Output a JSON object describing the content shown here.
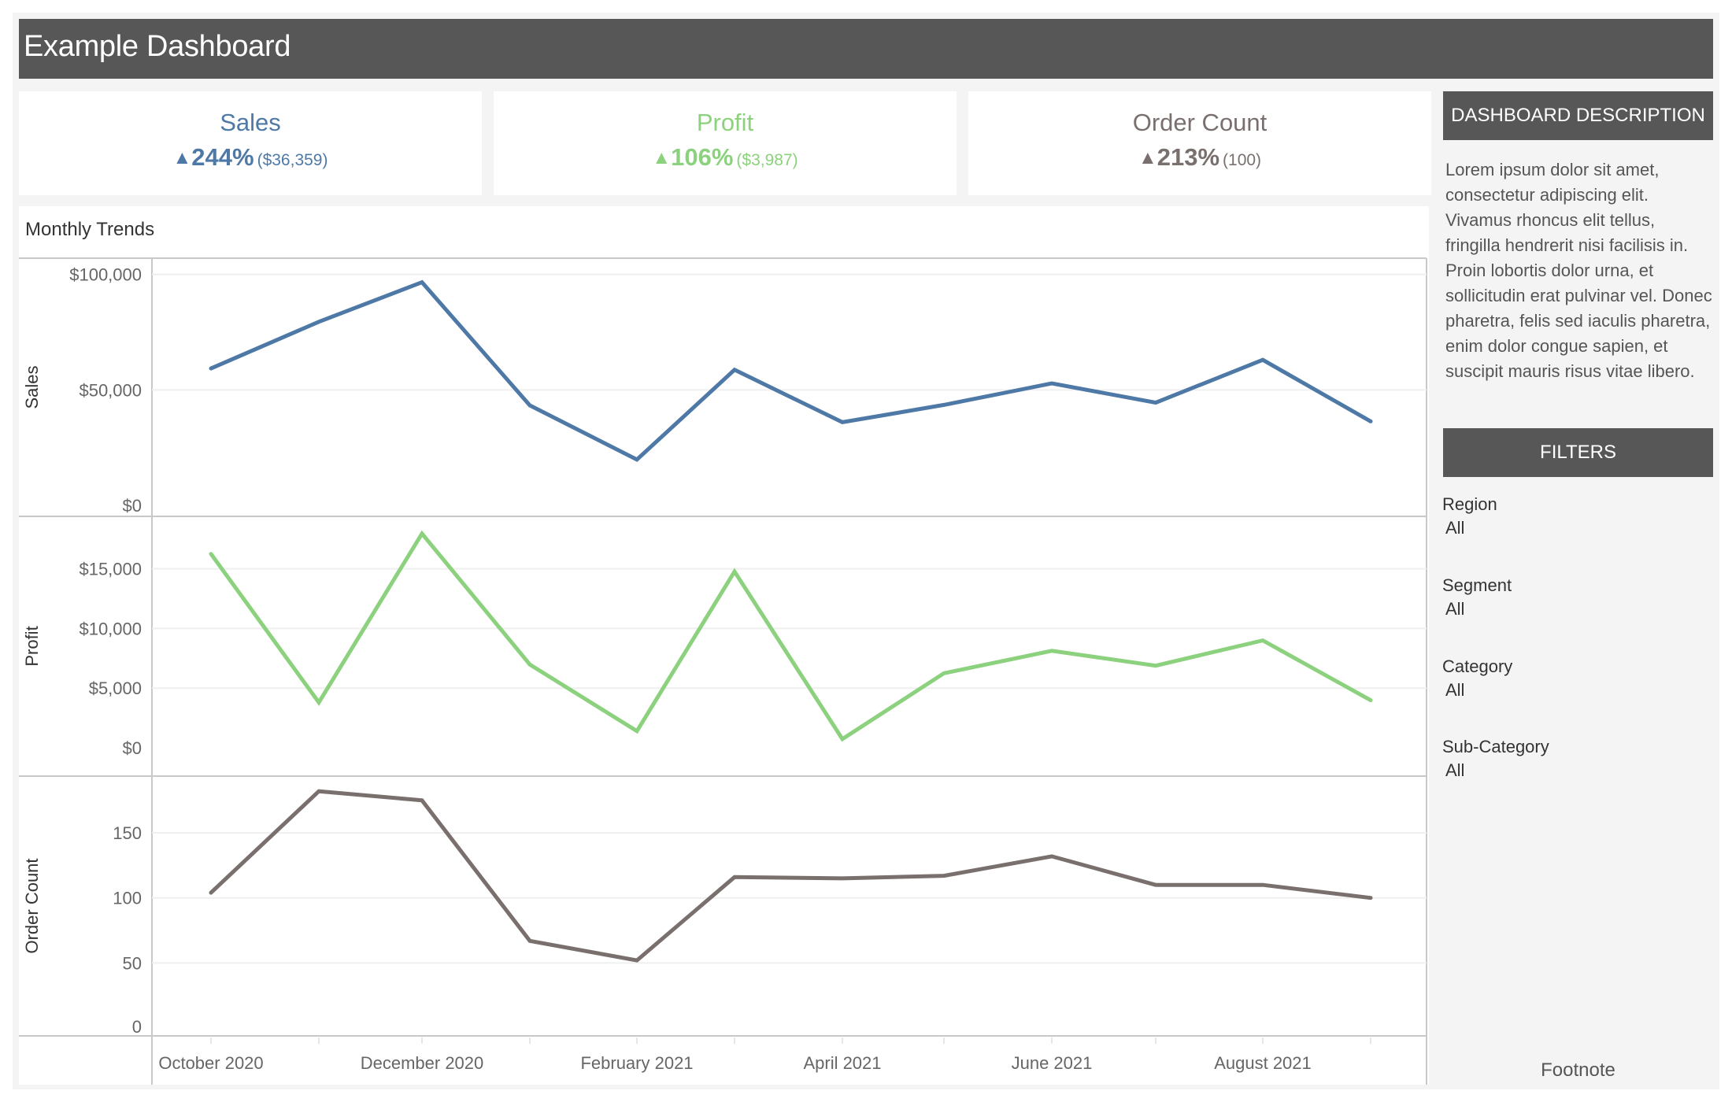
{
  "header": {
    "title": "Example Dashboard"
  },
  "kpis": [
    {
      "label": "Sales",
      "arrow": "▲",
      "pct": "244%",
      "abs": "($36,359)",
      "color": "#4e79a7"
    },
    {
      "label": "Profit",
      "arrow": "▲",
      "pct": "106%",
      "abs": "($3,987)",
      "color": "#8cd17d"
    },
    {
      "label": "Order Count",
      "arrow": "▲",
      "pct": "213%",
      "abs": "(100)",
      "color": "#79706e"
    }
  ],
  "sidebar": {
    "description_header": "DASHBOARD DESCRIPTION",
    "description": "Lorem ipsum dolor sit amet, consectetur adipiscing elit. Vivamus rhoncus elit tellus, fringilla hendrerit nisi facilisis in. Proin lobortis dolor urna, et sollicitudin erat pulvinar vel. Donec pharetra, felis sed iaculis pharetra, enim dolor congue sapien, et suscipit mauris risus vitae libero.",
    "filters_header": "FILTERS",
    "filters": [
      {
        "label": "Region",
        "value": "All"
      },
      {
        "label": "Segment",
        "value": "All"
      },
      {
        "label": "Category",
        "value": "All"
      },
      {
        "label": "Sub-Category",
        "value": "All"
      }
    ],
    "footnote": "Footnote"
  },
  "trends": {
    "title": "Monthly Trends"
  },
  "chart_data": {
    "type": "line",
    "title": "Monthly Trends",
    "x": [
      "October 2020",
      "November 2020",
      "December 2020",
      "January 2021",
      "February 2021",
      "March 2021",
      "April 2021",
      "May 2021",
      "June 2021",
      "July 2021",
      "August 2021",
      "September 2021"
    ],
    "x_tick_labels": [
      "October 2020",
      "December 2020",
      "February 2021",
      "April 2021",
      "June 2021",
      "August 2021"
    ],
    "grid": true,
    "legend": "none",
    "series": [
      {
        "name": "Sales",
        "color": "#4e79a7",
        "ylabel": "Sales",
        "ylim": [
          0,
          105000
        ],
        "yticks": [
          0,
          50000,
          100000
        ],
        "ytick_labels": [
          "$0",
          "$50,000",
          "$100,000"
        ],
        "values": [
          59300,
          79500,
          96600,
          43300,
          19800,
          58700,
          36000,
          43500,
          52800,
          44500,
          63000,
          36359
        ]
      },
      {
        "name": "Profit",
        "color": "#8cd17d",
        "ylabel": "Profit",
        "ylim": [
          0,
          19000
        ],
        "yticks": [
          0,
          5000,
          10000,
          15000
        ],
        "ytick_labels": [
          "$0",
          "$5,000",
          "$10,000",
          "$15,000"
        ],
        "values": [
          16250,
          3800,
          17950,
          6980,
          1400,
          14770,
          730,
          6250,
          8130,
          6880,
          9000,
          3987
        ]
      },
      {
        "name": "Order Count",
        "color": "#79706e",
        "ylabel": "Order Count",
        "ylim": [
          0,
          190
        ],
        "yticks": [
          0,
          50,
          100,
          150
        ],
        "ytick_labels": [
          "0",
          "50",
          "100",
          "150"
        ],
        "values": [
          104,
          182,
          175,
          67,
          52,
          116,
          115,
          117,
          132,
          110,
          110,
          100
        ]
      }
    ]
  }
}
